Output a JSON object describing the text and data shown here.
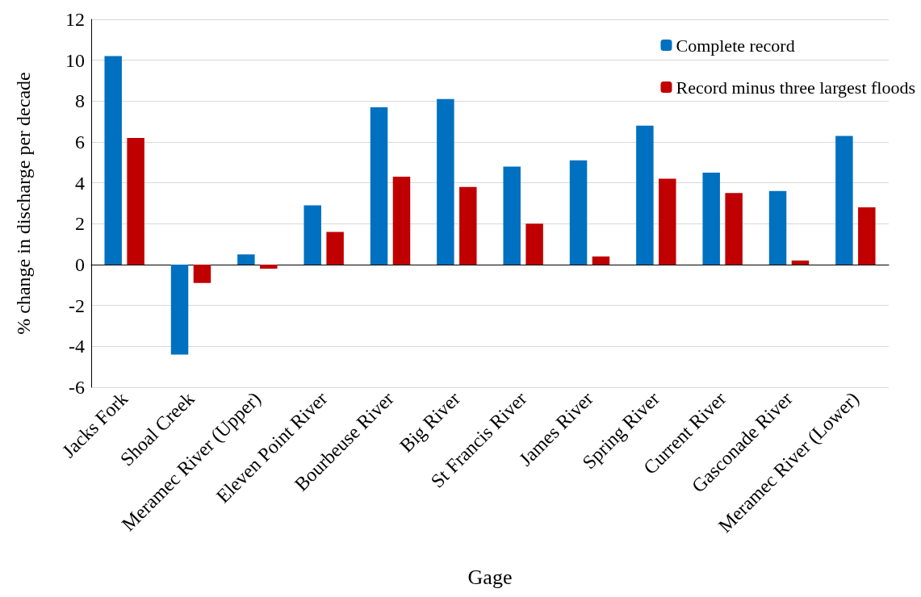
{
  "chart_data": {
    "type": "bar",
    "xlabel": "Gage",
    "ylabel": "% change in discharge per decade",
    "categories": [
      "Jacks Fork",
      "Shoal Creek",
      "Meramec River (Upper)",
      "Eleven Point River",
      "Bourbeuse River",
      "Big River",
      "St Francis River",
      "James River",
      "Spring River",
      "Current River",
      "Gasconade River",
      "Meramec River (Lower)"
    ],
    "series": [
      {
        "name": "Complete record",
        "color": "#0070c0",
        "values": [
          10.2,
          -4.4,
          0.5,
          2.9,
          7.7,
          8.1,
          4.8,
          5.1,
          6.8,
          4.5,
          3.6,
          6.3
        ]
      },
      {
        "name": "Record minus three largest floods",
        "color": "#c00000",
        "values": [
          6.2,
          -0.9,
          -0.2,
          1.6,
          4.3,
          3.8,
          2.0,
          0.4,
          4.2,
          3.5,
          0.2,
          2.8
        ]
      }
    ],
    "ylim": [
      -6,
      12
    ],
    "yticks": [
      -6,
      -4,
      -2,
      0,
      2,
      4,
      6,
      8,
      10,
      12
    ],
    "grid": "y",
    "legend": "top right"
  }
}
